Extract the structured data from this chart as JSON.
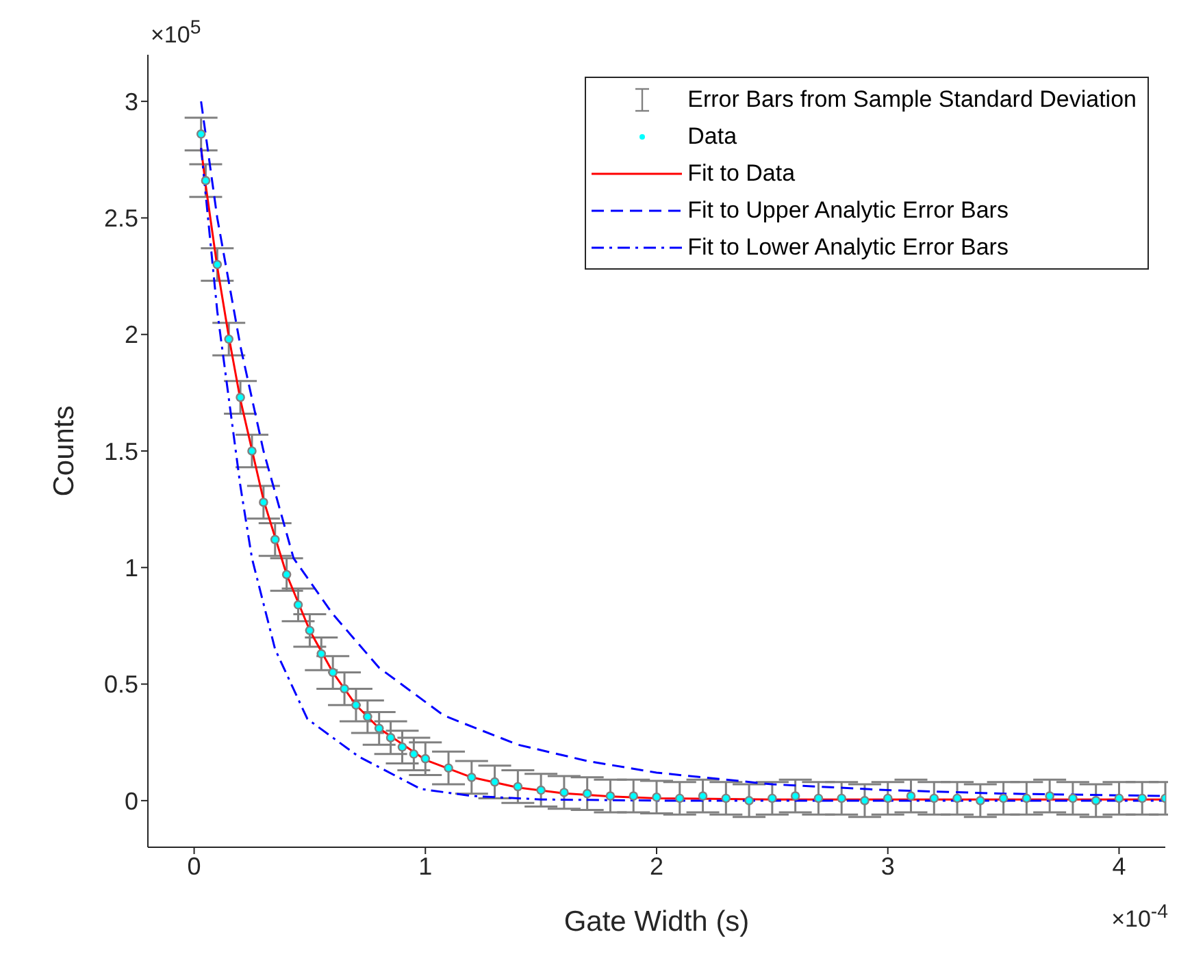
{
  "chart_data": {
    "type": "scatter",
    "xlabel": "Gate Width (s)",
    "ylabel": "Counts",
    "annotations": [
      "×10$^{5}$",
      "×10$^{-4}$"
    ],
    "xlim": [
      -0.2,
      4.2
    ],
    "xticks": [
      0,
      1,
      2,
      3,
      4
    ],
    "ylim": [
      -0.2,
      3.2
    ],
    "yticks": [
      0,
      0.5,
      1,
      1.5,
      2,
      2.5,
      3
    ],
    "legend": "top right",
    "series": [
      {
        "name": "Error Bars from Sample Standard Deviation",
        "marker": "circle",
        "color": "#808080",
        "x": [
          0.03,
          0.05,
          0.1,
          0.15,
          0.2,
          0.25,
          0.3,
          0.35,
          0.4,
          0.45,
          0.5,
          0.55,
          0.6,
          0.65,
          0.7,
          0.75,
          0.8,
          0.85,
          0.9,
          0.95,
          1.0,
          1.1,
          1.2,
          1.3,
          1.4,
          1.5,
          1.6,
          1.7,
          1.8,
          1.9,
          2.0,
          2.1,
          2.2,
          2.3,
          2.4,
          2.5,
          2.6,
          2.7,
          2.8,
          2.9,
          3.0,
          3.1,
          3.2,
          3.3,
          3.4,
          3.5,
          3.6,
          3.7,
          3.8,
          3.9,
          4.0,
          4.1,
          4.2
        ],
        "values": [
          2.86,
          2.66,
          2.3,
          1.98,
          1.73,
          1.5,
          1.28,
          1.12,
          0.97,
          0.84,
          0.73,
          0.63,
          0.55,
          0.48,
          0.41,
          0.36,
          0.31,
          0.27,
          0.23,
          0.2,
          0.18,
          0.14,
          0.1,
          0.08,
          0.06,
          0.045,
          0.035,
          0.03,
          0.02,
          0.02,
          0.015,
          0.01,
          0.02,
          0.01,
          0.0,
          0.01,
          0.02,
          0.01,
          0.01,
          0.0,
          0.01,
          0.02,
          0.01,
          0.01,
          0.0,
          0.01,
          0.01,
          0.02,
          0.01,
          0.0,
          0.01,
          0.01,
          0.01
        ],
        "errors": [
          0.07,
          0.07,
          0.07,
          0.07,
          0.07,
          0.07,
          0.07,
          0.07,
          0.07,
          0.07,
          0.07,
          0.07,
          0.07,
          0.07,
          0.07,
          0.07,
          0.07,
          0.07,
          0.07,
          0.07,
          0.07,
          0.07,
          0.07,
          0.07,
          0.07,
          0.07,
          0.07,
          0.07,
          0.07,
          0.07,
          0.07,
          0.07,
          0.07,
          0.07,
          0.07,
          0.07,
          0.07,
          0.07,
          0.07,
          0.07,
          0.07,
          0.07,
          0.07,
          0.07,
          0.07,
          0.07,
          0.07,
          0.07,
          0.07,
          0.07,
          0.07,
          0.07,
          0.07
        ]
      },
      {
        "name": "Data",
        "marker": "circle",
        "color": "#00ffff",
        "x": [
          0.03,
          0.05,
          0.1,
          0.15,
          0.2,
          0.25,
          0.3,
          0.35,
          0.4,
          0.45,
          0.5,
          0.55,
          0.6,
          0.65,
          0.7,
          0.75,
          0.8,
          0.85,
          0.9,
          0.95,
          1.0,
          1.1,
          1.2,
          1.3,
          1.4,
          1.5,
          1.6,
          1.7,
          1.8,
          1.9,
          2.0,
          2.1,
          2.2,
          2.3,
          2.4,
          2.5,
          2.6,
          2.7,
          2.8,
          2.9,
          3.0,
          3.1,
          3.2,
          3.3,
          3.4,
          3.5,
          3.6,
          3.7,
          3.8,
          3.9,
          4.0,
          4.1,
          4.2
        ],
        "values": [
          2.86,
          2.66,
          2.3,
          1.98,
          1.73,
          1.5,
          1.28,
          1.12,
          0.97,
          0.84,
          0.73,
          0.63,
          0.55,
          0.48,
          0.41,
          0.36,
          0.31,
          0.27,
          0.23,
          0.2,
          0.18,
          0.14,
          0.1,
          0.08,
          0.06,
          0.045,
          0.035,
          0.03,
          0.02,
          0.02,
          0.015,
          0.01,
          0.02,
          0.01,
          0.0,
          0.01,
          0.02,
          0.01,
          0.01,
          0.0,
          0.01,
          0.02,
          0.01,
          0.01,
          0.0,
          0.01,
          0.01,
          0.02,
          0.01,
          0.0,
          0.01,
          0.01,
          0.01
        ]
      },
      {
        "name": "Fit to Data",
        "type": "line",
        "line_style": "solid",
        "color": "#ff0000",
        "x": [
          0.03,
          0.05,
          0.1,
          0.15,
          0.2,
          0.3,
          0.4,
          0.5,
          0.6,
          0.7,
          0.8,
          1.0,
          1.2,
          1.4,
          1.6,
          1.8,
          2.0,
          2.5,
          3.0,
          3.5,
          4.2
        ],
        "values": [
          2.8,
          2.64,
          2.29,
          1.99,
          1.72,
          1.29,
          0.97,
          0.73,
          0.55,
          0.41,
          0.31,
          0.175,
          0.1,
          0.056,
          0.031,
          0.018,
          0.01,
          0.005,
          0.005,
          0.005,
          0.005
        ]
      },
      {
        "name": "Fit to Upper Analytic Error Bars",
        "type": "line",
        "line_style": "dashed",
        "color": "#0000ff",
        "x": [
          0.03,
          0.1,
          0.2,
          0.3,
          0.43,
          0.6,
          0.8,
          1.08,
          1.4,
          1.7,
          2.0,
          2.5,
          3.0,
          3.5,
          4.2
        ],
        "values": [
          3.0,
          2.5,
          1.95,
          1.5,
          1.04,
          0.8,
          0.57,
          0.365,
          0.24,
          0.17,
          0.12,
          0.07,
          0.045,
          0.03,
          0.02
        ]
      },
      {
        "name": "Fit to Lower Analytic Error Bars",
        "type": "line",
        "line_style": "dashdot",
        "color": "#0000ff",
        "x": [
          0.03,
          0.1,
          0.2,
          0.25,
          0.35,
          0.49,
          0.71,
          0.98,
          1.2,
          1.5,
          2.0,
          3.0,
          4.2
        ],
        "values": [
          2.8,
          2.1,
          1.35,
          1.04,
          0.65,
          0.35,
          0.19,
          0.05,
          0.02,
          0.005,
          0.0,
          0.0,
          0.0
        ]
      }
    ]
  }
}
